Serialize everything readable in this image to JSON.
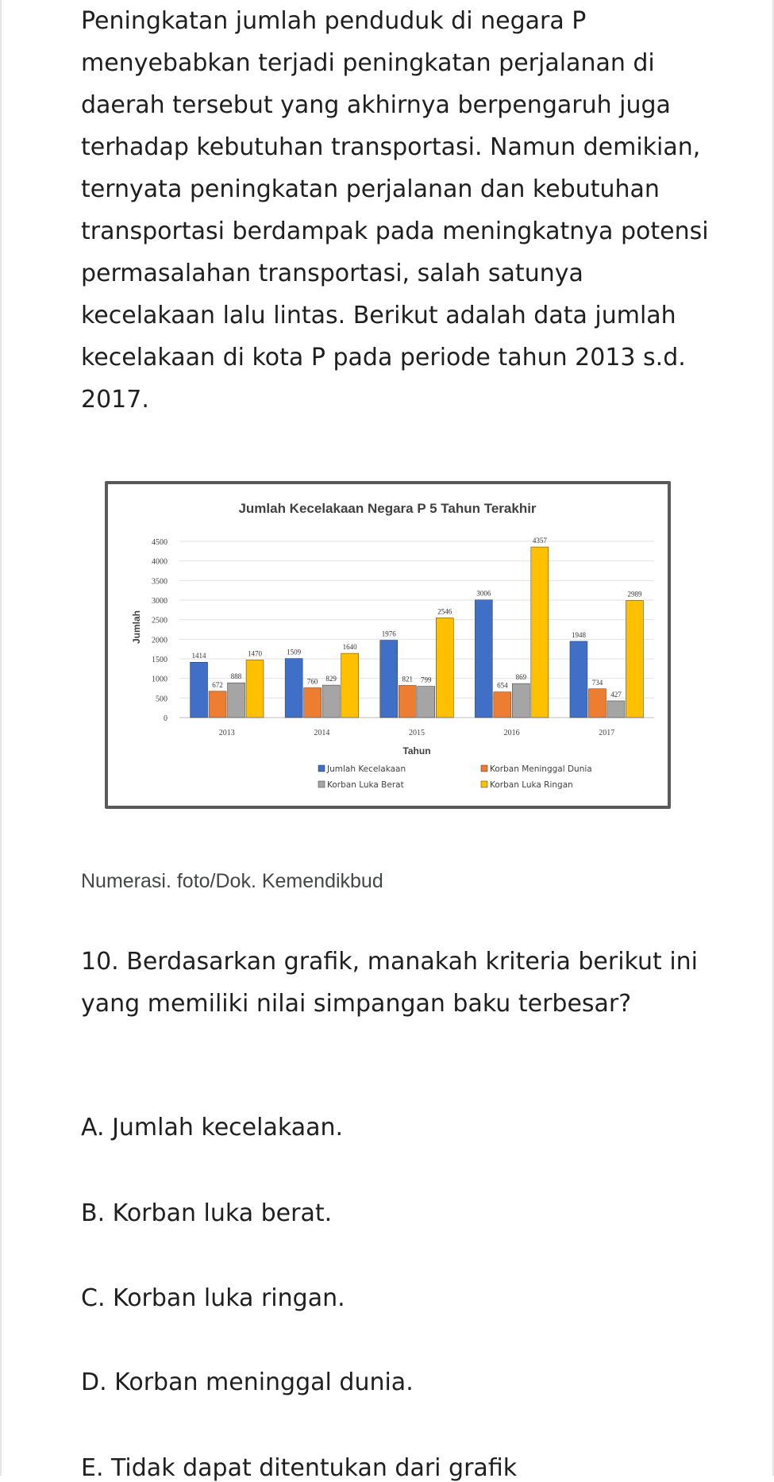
{
  "article": {
    "intro": "Peningkatan jumlah penduduk di negara P menyebabkan terjadi peningkatan perjalanan di daerah tersebut yang akhirnya berpengaruh juga terhadap kebutuhan transportasi. Namun demikian, ternyata peningkatan perjalanan dan kebutuhan transportasi berdampak pada meningkatnya potensi permasalahan transportasi, salah satunya kecelakaan lalu lintas. Berikut adalah data jumlah kecelakaan di kota P pada periode tahun 2013 s.d. 2017.",
    "caption": "Numerasi. foto/Dok. Kemendikbud",
    "question": "10. Berdasarkan grafik, manakah kriteria berikut ini yang memiliki nilai simpangan baku terbesar?",
    "options": [
      "A. Jumlah kecelakaan.",
      "B. Korban luka berat.",
      "C. Korban luka ringan.",
      "D. Korban meninggal dunia.",
      "E. Tidak dapat ditentukan dari grafik"
    ]
  },
  "chart_data": {
    "type": "bar",
    "title": "Jumlah Kecelakaan Negara P 5 Tahun Terakhir",
    "xlabel": "Tahun",
    "ylabel": "Jumlah",
    "ylim": [
      0,
      4500
    ],
    "yticks": [
      0,
      500,
      1000,
      1500,
      2000,
      2500,
      3000,
      3500,
      4000,
      4500
    ],
    "categories": [
      "2013",
      "2014",
      "2015",
      "2016",
      "2017"
    ],
    "legend_position": "bottom",
    "series": [
      {
        "name": "Jumlah Kecelakaan",
        "color": "#3f6fc7",
        "values": [
          1414,
          1509,
          1976,
          3006,
          1948
        ],
        "labels": [
          "1414",
          "1509",
          "1976",
          "3006",
          "1948"
        ]
      },
      {
        "name": "Korban Meninggal Dunia",
        "color": "#ed7d31",
        "values": [
          672,
          760,
          821,
          654,
          734
        ],
        "labels": [
          "672",
          "760",
          "821",
          "654",
          "734"
        ]
      },
      {
        "name": "Korban Luka Berat",
        "color": "#a5a5a5",
        "values": [
          888,
          829,
          799,
          869,
          427
        ],
        "labels": [
          "888",
          "829",
          "799",
          "869",
          "427"
        ]
      },
      {
        "name": "Korban Luka Ringan",
        "color": "#ffc000",
        "values": [
          1470,
          1640,
          2546,
          4357,
          2989
        ],
        "labels": [
          "1470",
          "1640",
          "2546",
          "4357",
          "2989"
        ]
      }
    ]
  }
}
